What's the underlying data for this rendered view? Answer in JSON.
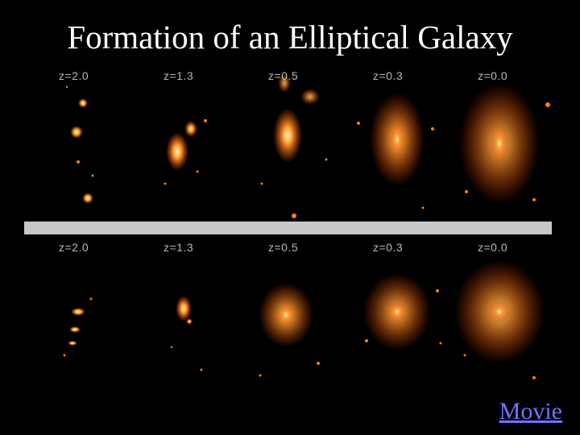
{
  "title": "Formation of an Elliptical Galaxy",
  "rows": [
    {
      "labels": [
        "z=2.0",
        "z=1.3",
        "z=0.5",
        "z=0.3",
        "z=0.0"
      ]
    },
    {
      "labels": [
        "z=2.0",
        "z=1.3",
        "z=0.5",
        "z=0.3",
        "z=0.0"
      ]
    }
  ],
  "movie_link": "Movie",
  "colors": {
    "background": "#000000",
    "divider": "#c8c8c8",
    "link": "#6f72ff",
    "galaxy_core": "#fff4b0",
    "galaxy_glow": "#ff7a18"
  }
}
